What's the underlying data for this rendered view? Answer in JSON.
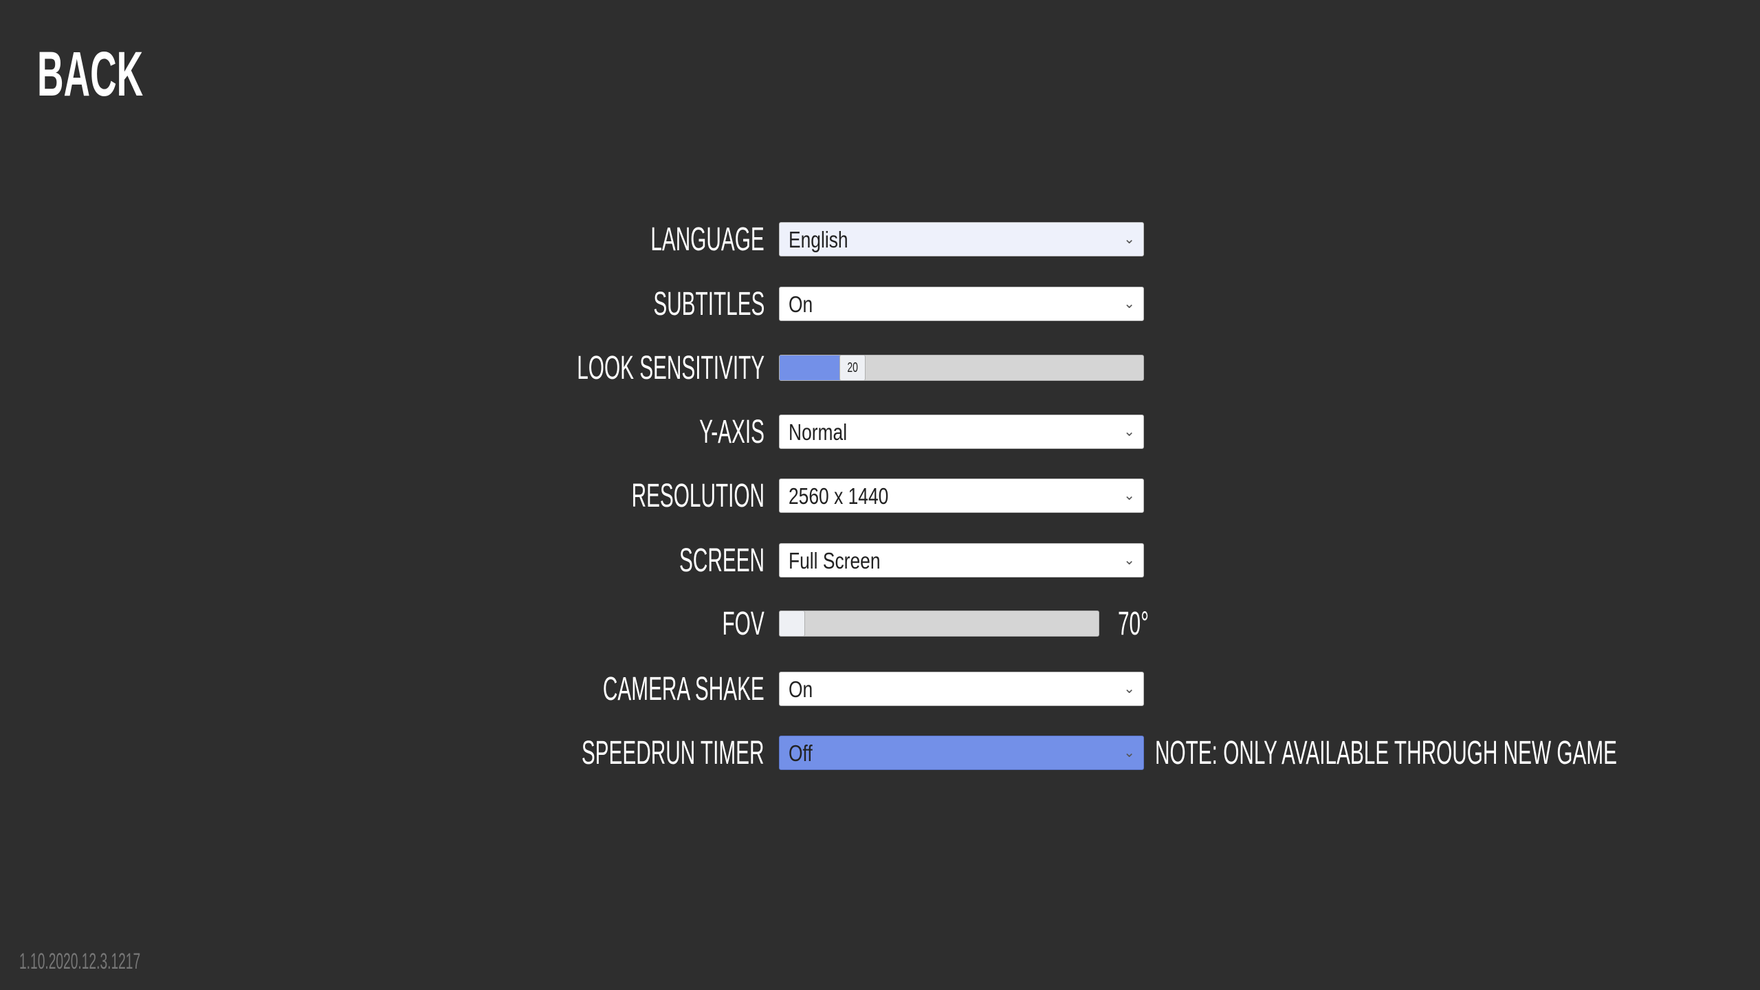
{
  "back_label": "BACK",
  "version": "1.10.2020.12.3.1217",
  "settings": {
    "language": {
      "label": "LANGUAGE",
      "value": "English"
    },
    "subtitles": {
      "label": "SUBTITLES",
      "value": "On"
    },
    "look_sensitivity": {
      "label": "LOOK SENSITIVITY",
      "value": "20",
      "fill_fraction": 0.18
    },
    "y_axis": {
      "label": "Y-AXIS",
      "value": "Normal"
    },
    "resolution": {
      "label": "RESOLUTION",
      "value": "2560 x 1440"
    },
    "screen": {
      "label": "SCREEN",
      "value": "Full Screen"
    },
    "fov": {
      "label": "FOV",
      "value": "70°",
      "fill_fraction": 0.0
    },
    "camera_shake": {
      "label": "CAMERA SHAKE",
      "value": "On"
    },
    "speedrun_timer": {
      "label": "SPEEDRUN TIMER",
      "value": "Off",
      "note": "NOTE: ONLY AVAILABLE THROUGH NEW GAME"
    }
  },
  "colors": {
    "background": "#2e2e2e",
    "accent": "#7390e8"
  },
  "icons": {
    "dropdown": "chevron-down-icon"
  }
}
